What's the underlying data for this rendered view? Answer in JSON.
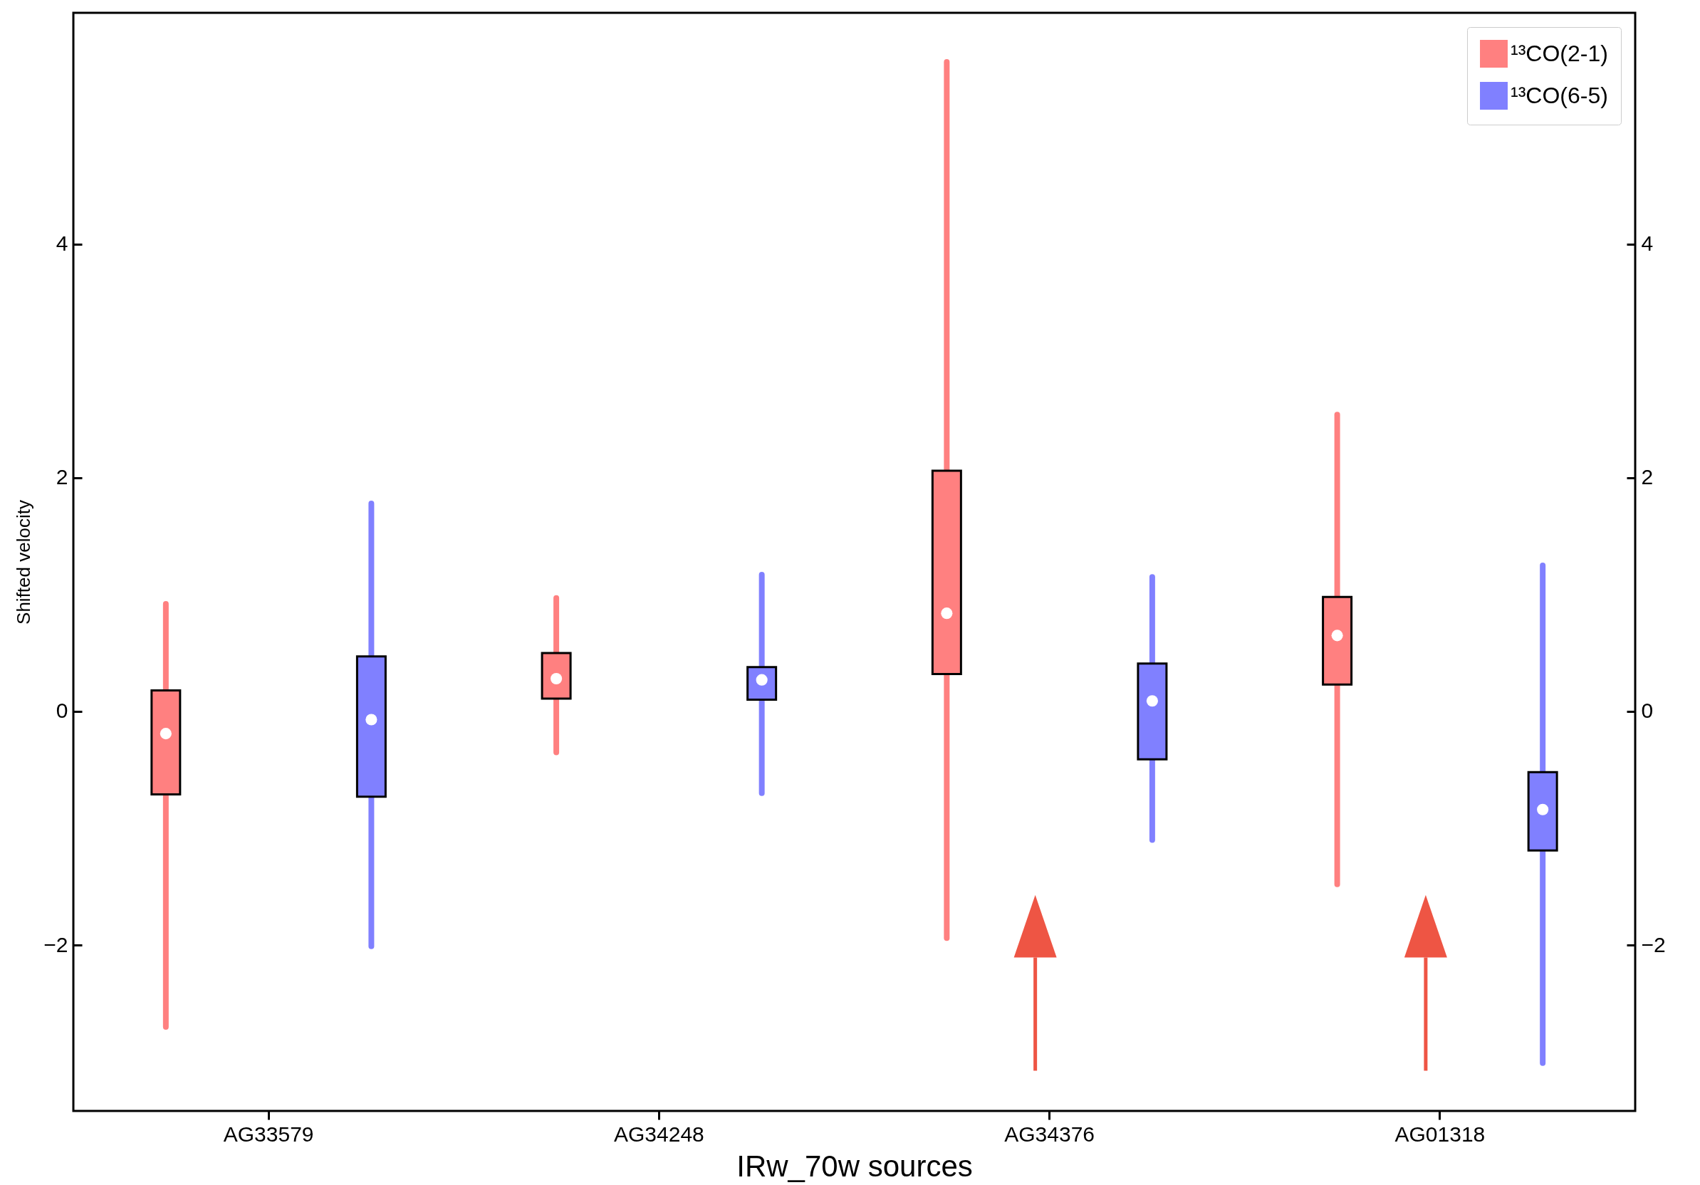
{
  "chart_data": {
    "type": "box",
    "xlabel": "IRw_70w sources",
    "ylabel": "Shifted velocity",
    "categories": [
      "AG33579",
      "AG34248",
      "AG34376",
      "AG01318"
    ],
    "ylim": [
      -3.42,
      5.98
    ],
    "yticks": [
      -2,
      0,
      2,
      4
    ],
    "y2lim": [
      -3.42,
      5.98
    ],
    "y2ticks": [
      -2,
      0,
      2,
      4
    ],
    "legend": "top right",
    "grid": false,
    "series": [
      {
        "name": "¹³CO(2-1)",
        "color": "#ff8080",
        "boxes": [
          {
            "low": -2.7,
            "q1": -0.71,
            "median": -0.19,
            "q3": 0.18,
            "high": 0.92
          },
          {
            "low": -0.35,
            "q1": 0.11,
            "median": 0.28,
            "q3": 0.5,
            "high": 0.97
          },
          {
            "low": -1.94,
            "q1": 0.32,
            "median": 0.84,
            "q3": 2.06,
            "high": 5.56
          },
          {
            "low": -1.48,
            "q1": 0.23,
            "median": 0.65,
            "q3": 0.98,
            "high": 2.54
          }
        ]
      },
      {
        "name": "¹³CO(6-5)",
        "color": "#8080ff",
        "boxes": [
          {
            "low": -2.01,
            "q1": -0.73,
            "median": -0.07,
            "q3": 0.47,
            "high": 1.78
          },
          {
            "low": -0.7,
            "q1": 0.1,
            "median": 0.27,
            "q3": 0.38,
            "high": 1.17
          },
          {
            "low": -1.1,
            "q1": -0.41,
            "median": 0.09,
            "q3": 0.41,
            "high": 1.15
          },
          {
            "low": -3.01,
            "q1": -1.19,
            "median": -0.84,
            "q3": -0.52,
            "high": 1.25
          }
        ]
      }
    ]
  }
}
